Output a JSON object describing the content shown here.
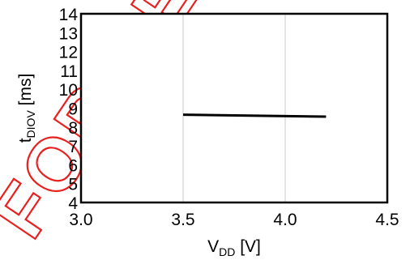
{
  "chart_data": {
    "type": "line",
    "xlabel": {
      "main": "V",
      "sub": "DD",
      "unit": " [V]"
    },
    "ylabel": {
      "main": "t",
      "sub": "DIOV",
      "unit": " [ms]"
    },
    "xlim": [
      3.0,
      4.5
    ],
    "ylim": [
      4,
      14
    ],
    "xticks": [
      "3.0",
      "3.5",
      "4.0",
      "4.5"
    ],
    "yticks": [
      "4",
      "5",
      "6",
      "7",
      "8",
      "9",
      "10",
      "11",
      "12",
      "13",
      "14"
    ],
    "grid": "vertical",
    "series": [
      {
        "x": [
          3.5,
          4.2
        ],
        "y": [
          8.65,
          8.55
        ],
        "color": "#000000"
      }
    ]
  },
  "watermark": {
    "text": "FOR NE",
    "color": "#e8201f"
  }
}
